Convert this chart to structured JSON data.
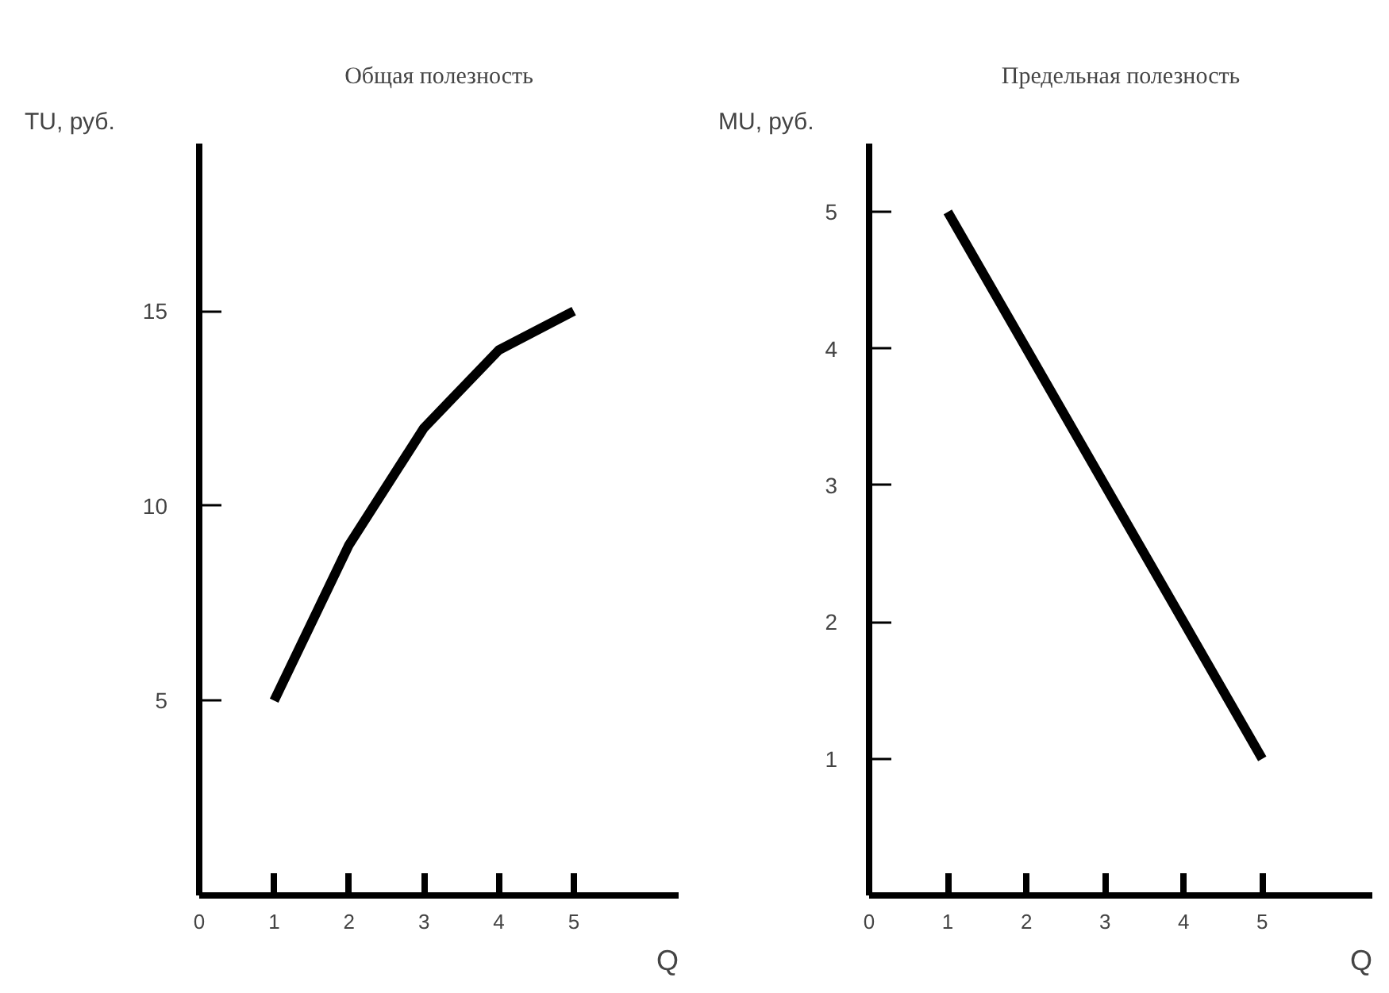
{
  "chart_data": [
    {
      "type": "line",
      "title": "Общая полезность",
      "xlabel": "Q",
      "ylabel": "TU, руб.",
      "x": [
        1,
        2,
        3,
        4,
        5
      ],
      "series": [
        {
          "color": "#000000",
          "values": [
            5,
            9,
            12,
            14,
            15
          ]
        }
      ],
      "xlim": [
        0,
        6.4
      ],
      "xticks": [
        0,
        1,
        2,
        3,
        4,
        5
      ],
      "ylim": [
        0,
        19.3
      ],
      "yticks": [
        5,
        10,
        15
      ],
      "line_style": "solid"
    },
    {
      "type": "line",
      "title": "Предельная полезность",
      "xlabel": "Q",
      "ylabel": "MU, руб.",
      "x": [
        1,
        2,
        3,
        4,
        5
      ],
      "series": [
        {
          "color": "#000000",
          "values": [
            5,
            4,
            3,
            2,
            1
          ]
        }
      ],
      "xlim": [
        0,
        6.4
      ],
      "xticks": [
        0,
        1,
        2,
        3,
        4,
        5
      ],
      "ylim": [
        0,
        5.5
      ],
      "yticks": [
        1,
        2,
        3,
        4,
        5
      ],
      "line_style": "solid"
    }
  ]
}
